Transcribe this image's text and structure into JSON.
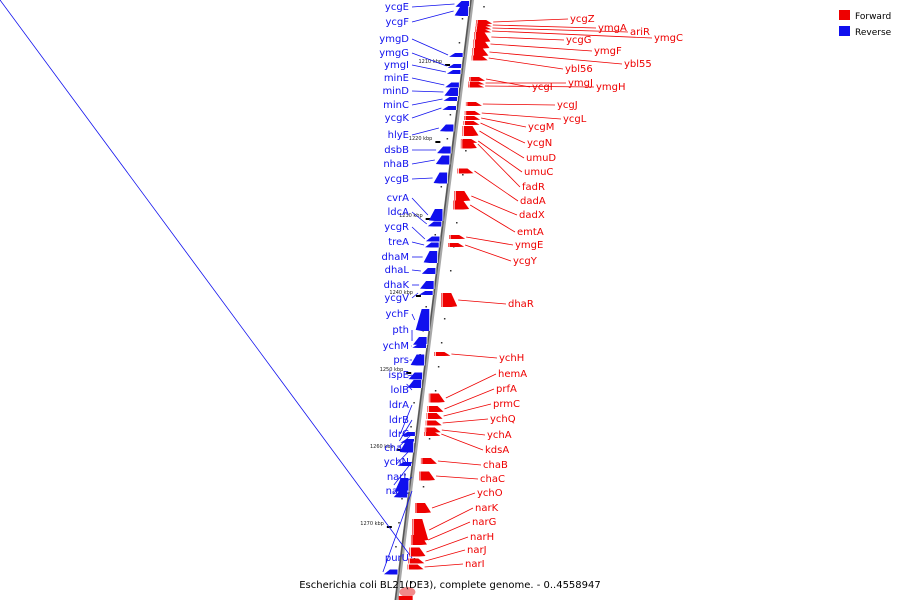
{
  "caption": "Escherichia coli BL21(DE3), complete genome. - 0..4558947",
  "legend": [
    {
      "label": "Forward",
      "color": "#ee0000"
    },
    {
      "label": "Reverse",
      "color": "#1010ee"
    }
  ],
  "ticks": [
    "1210 kbp",
    "1220 kbp",
    "1230 kbp",
    "1240 kbp",
    "1250 kbp",
    "1260 kbp",
    "1270 kbp"
  ],
  "reverse_genes": [
    "ycgE",
    "ycgF",
    "ymgD",
    "ymgG",
    "ymgI",
    "minE",
    "minD",
    "minC",
    "ycgK",
    "hlyE",
    "dsbB",
    "nhaB",
    "ycgB",
    "cvrA",
    "ldcA",
    "ycgR",
    "treA",
    "dhaM",
    "dhaL",
    "dhaK",
    "ycgV",
    "ychF",
    "pth",
    "ychM",
    "prs",
    "ispE",
    "lolB",
    "ldrA",
    "ldrB",
    "ldrC",
    "chaA",
    "ychN",
    "narL",
    "narX",
    "purU"
  ],
  "forward_genes": [
    "ycgZ",
    "ymgA",
    "ariR",
    "ymgC",
    "ycgG",
    "ymgF",
    "ybl55",
    "ybl56",
    "ycgI",
    "ymgJ",
    "ymgH",
    "ycgJ",
    "ycgL",
    "ycgM",
    "ycgN",
    "umuD",
    "umuC",
    "fadR",
    "dadA",
    "dadX",
    "emtA",
    "ymgE",
    "ycgY",
    "dhaR",
    "ychH",
    "hemA",
    "prfA",
    "prmC",
    "ychQ",
    "ychA",
    "kdsA",
    "chaB",
    "chaC",
    "ychO",
    "narK",
    "narG",
    "narH",
    "narJ",
    "narI"
  ]
}
